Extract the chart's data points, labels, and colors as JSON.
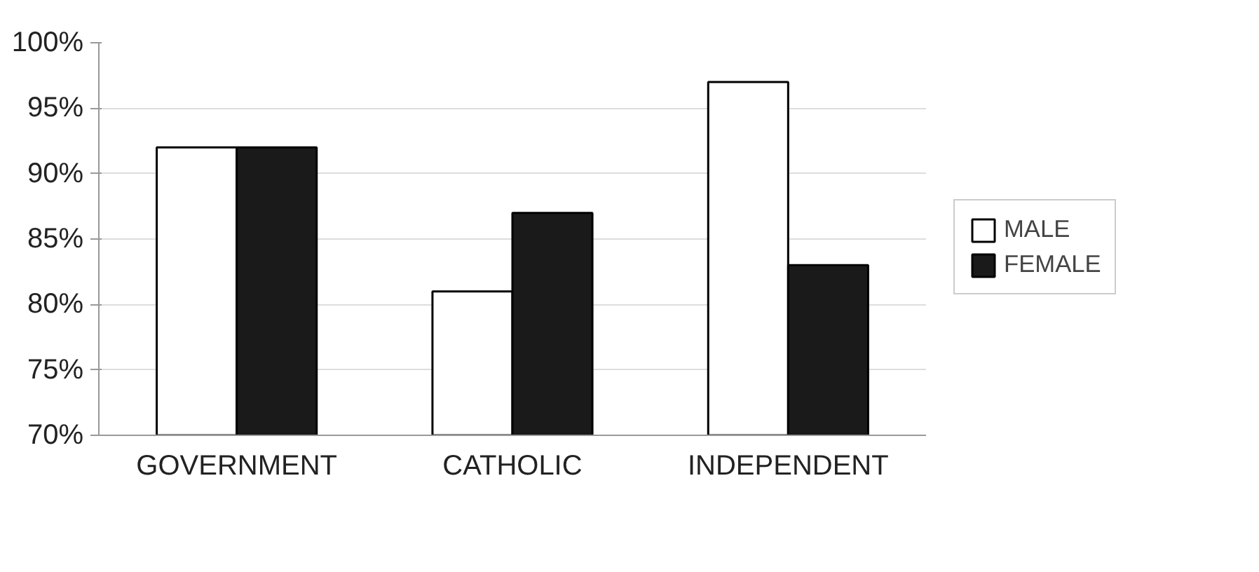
{
  "chart_data": {
    "type": "bar",
    "categories": [
      "GOVERNMENT",
      "CATHOLIC",
      "INDEPENDENT"
    ],
    "series": [
      {
        "name": "MALE",
        "color": "#ffffff",
        "values": [
          92,
          81,
          97
        ]
      },
      {
        "name": "FEMALE",
        "color": "#1a1a1a",
        "values": [
          92,
          87,
          83
        ]
      }
    ],
    "ylim": [
      70,
      100
    ],
    "yticks": [
      {
        "value": 70,
        "label": "70%"
      },
      {
        "value": 75,
        "label": "75%"
      },
      {
        "value": 80,
        "label": "80%"
      },
      {
        "value": 85,
        "label": "85%"
      },
      {
        "value": 90,
        "label": "90%"
      },
      {
        "value": 95,
        "label": "95%"
      },
      {
        "value": 100,
        "label": "100%"
      }
    ],
    "grid": "y",
    "legend": "right"
  }
}
